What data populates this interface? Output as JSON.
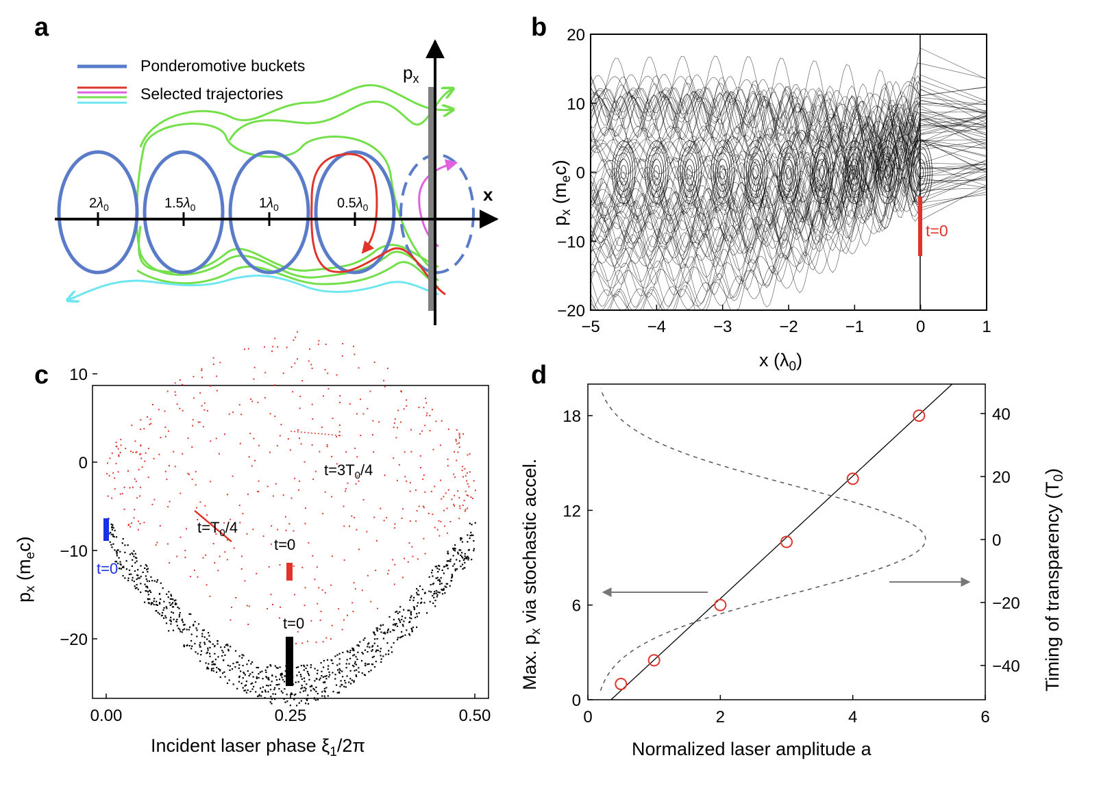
{
  "panel_a": {
    "label": "a",
    "legend": [
      {
        "text": "Ponderomotive buckets",
        "color": "#5a7cc8"
      },
      {
        "text": "Selected trajectories",
        "colors": [
          "#e0342a",
          "#e060e0",
          "#73e04a",
          "#6de6f0"
        ]
      }
    ],
    "axis_y_label": "p",
    "axis_y_sub": "x",
    "axis_x_label": "x",
    "bucket_labels": [
      {
        "pre": "2",
        "sym": "λ",
        "sub": "0"
      },
      {
        "pre": "1.5",
        "sym": "λ",
        "sub": "0"
      },
      {
        "pre": "1",
        "sym": "λ",
        "sub": "0"
      },
      {
        "pre": "0.5",
        "sym": "λ",
        "sub": "0"
      }
    ]
  },
  "panel_b": {
    "label": "b",
    "ylabel": "p",
    "ylabel_sub": "x",
    "ylabel_unit": " (m",
    "ylabel_unit_sub": "e",
    "ylabel_tail": "c)",
    "xlabel": "x (λ",
    "xlabel_sub": "0",
    "xlabel_tail": ")",
    "t0_label": "t=0",
    "xticks": [
      "−5",
      "−4",
      "−3",
      "−2",
      "−1",
      "0",
      "1"
    ],
    "yticks": [
      "20",
      "10",
      "0",
      "−10",
      "−20"
    ]
  },
  "panel_c": {
    "label": "c",
    "ylabel": "p",
    "ylabel_sub": "x",
    "ylabel_unit": " (m",
    "ylabel_unit_sub": "e",
    "ylabel_tail": "c)",
    "xlabel": "Incident laser phase ξ",
    "xlabel_sub": "1",
    "xlabel_tail": "/2π",
    "xticks": [
      "0.00",
      "0.25",
      "0.50"
    ],
    "yticks": [
      "10",
      "0",
      "−10",
      "−20"
    ],
    "annotations": [
      {
        "text": "t=3T",
        "sub": "0",
        "tail": "/4"
      },
      {
        "text": "t=T",
        "sub": "0",
        "tail": "/4"
      },
      {
        "text": "t=0"
      },
      {
        "text": "t=0"
      },
      {
        "text": "t=0"
      }
    ]
  },
  "panel_d": {
    "label": "d",
    "ylabel_left": "Max. p",
    "ylabel_left_sub": "x",
    "ylabel_left_tail": " via stochastic accel.",
    "ylabel_right": "Timing of transparency (T",
    "ylabel_right_sub": "0",
    "ylabel_right_tail": ")",
    "xlabel": "Normalized laser amplitude a",
    "xticks": [
      "0",
      "2",
      "4",
      "6"
    ],
    "yticks_left": [
      "0",
      "6",
      "12",
      "18"
    ],
    "yticks_right": [
      "40",
      "20",
      "0",
      "−20",
      "−40"
    ]
  },
  "chart_data": [
    {
      "type": "line",
      "panel": "b",
      "xlabel": "x (λ0)",
      "ylabel": "px (mec)",
      "xlim": [
        -5,
        1
      ],
      "ylim": [
        -20,
        20
      ],
      "annotation": "t=0",
      "series": []
    },
    {
      "type": "scatter",
      "panel": "c",
      "xlabel": "Incident laser phase ξ1/2π",
      "ylabel": "px (mec)",
      "xlim": [
        0,
        0.5
      ],
      "ylim": [
        -28,
        18
      ],
      "series": [
        {
          "color": "#000000",
          "x": [
            0.0,
            0.05,
            0.1,
            0.15,
            0.2,
            0.25,
            0.3,
            0.35,
            0.4,
            0.45,
            0.5
          ],
          "y": [
            -6,
            -9,
            -13,
            -17,
            -21,
            -23,
            -21,
            -17,
            -13,
            -9,
            -6
          ]
        },
        {
          "color": "#e0342a",
          "x": [
            0.0,
            0.1,
            0.2,
            0.3,
            0.4,
            0.5
          ],
          "y": [
            0,
            3,
            5,
            6,
            3,
            0
          ]
        }
      ]
    },
    {
      "type": "scatter",
      "panel": "d",
      "xlabel": "Normalized laser amplitude a",
      "ylabel": "Max. px via stochastic accel.",
      "ylabel_right": "Timing of transparency (T0)",
      "xlim": [
        0,
        6
      ],
      "ylim": [
        0,
        20
      ],
      "ylim_right": [
        -50,
        50
      ],
      "series": [
        {
          "color": "#e0342a",
          "x": [
            0.5,
            1,
            2,
            3,
            4,
            5
          ],
          "y": [
            1,
            2.5,
            6,
            10,
            14,
            18
          ]
        }
      ]
    }
  ]
}
